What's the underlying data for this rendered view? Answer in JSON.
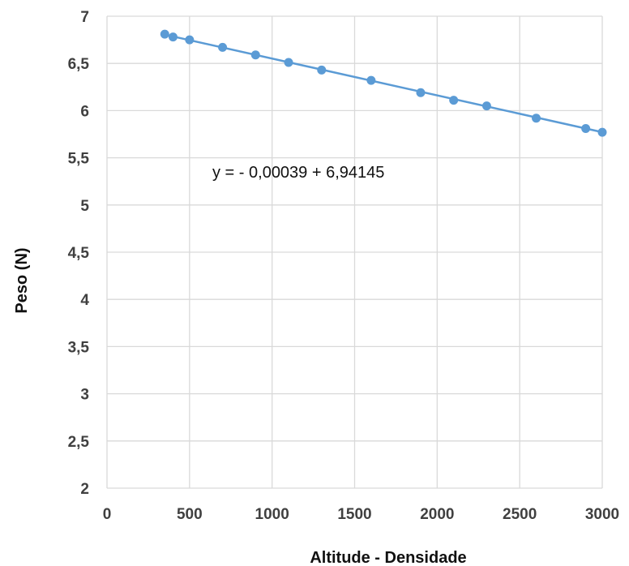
{
  "chart_data": {
    "type": "scatter",
    "xlabel": "Altitude - Densidade",
    "ylabel": "Peso (N)",
    "xlim": [
      0,
      3000
    ],
    "ylim": [
      2,
      7
    ],
    "x_ticks": [
      "0",
      "500",
      "1000",
      "1500",
      "2000",
      "2500",
      "3000"
    ],
    "y_ticks": [
      "2",
      "2,5",
      "3",
      "3,5",
      "4",
      "4,5",
      "5",
      "5,5",
      "6",
      "6,5",
      "7"
    ],
    "grid": true,
    "legend": "none",
    "annotation": "y = - 0,00039  + 6,94145",
    "trendline": {
      "slope": -0.00039,
      "intercept": 6.94145,
      "x_range": [
        350,
        3000
      ]
    },
    "colors": {
      "series": "#5b9bd5",
      "grid": "#d9d9d9"
    },
    "series": [
      {
        "x": [
          350,
          400,
          500,
          700,
          900,
          1100,
          1300,
          1600,
          1900,
          2100,
          2300,
          2600,
          2900,
          3000
        ],
        "y": [
          6.81,
          6.78,
          6.75,
          6.67,
          6.59,
          6.51,
          6.43,
          6.32,
          6.19,
          6.11,
          6.05,
          5.92,
          5.81,
          5.77
        ]
      }
    ]
  }
}
